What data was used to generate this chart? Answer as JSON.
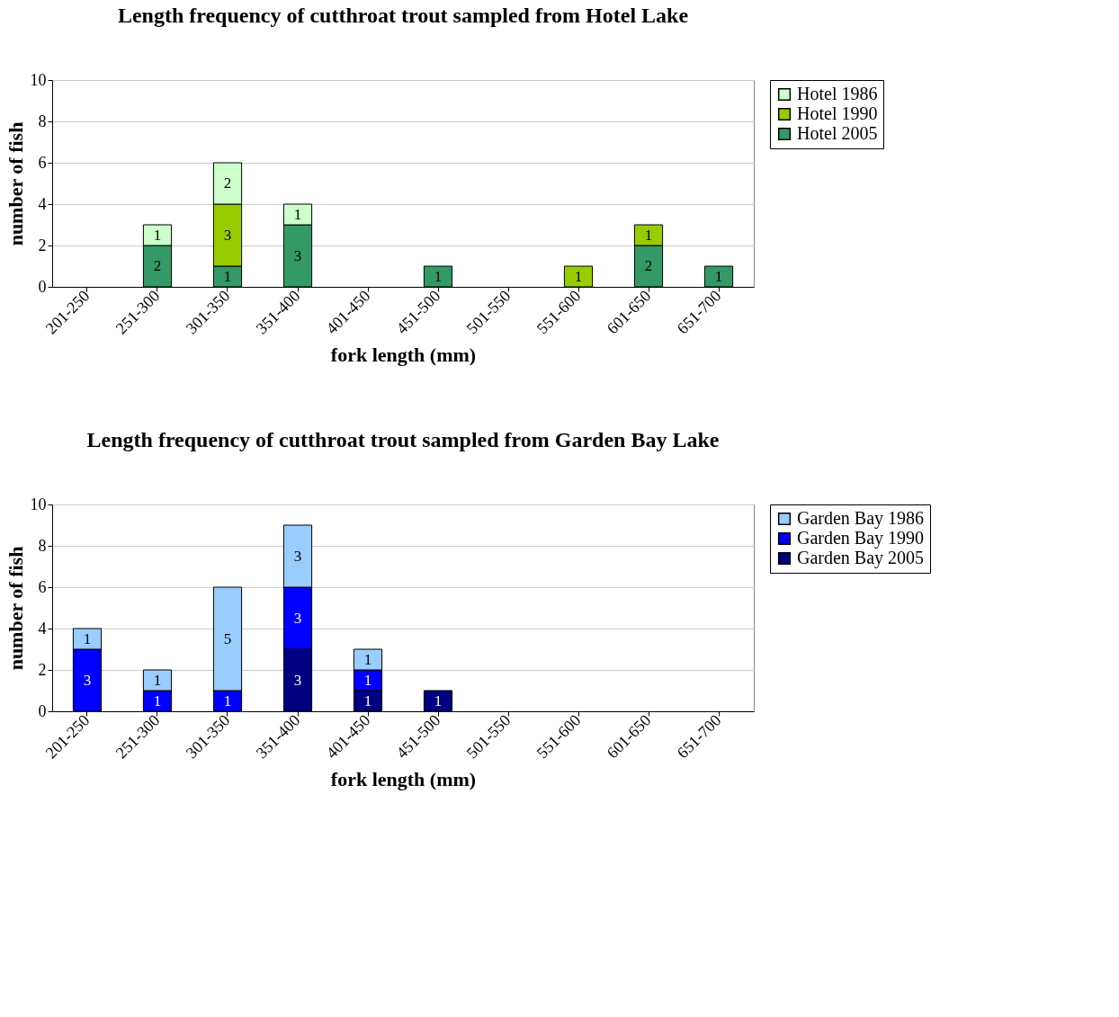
{
  "chart_data": [
    {
      "type": "bar",
      "stacked": true,
      "title": "Length frequency of cutthroat trout sampled from Hotel Lake",
      "xlabel": "fork length (mm)",
      "ylabel": "number of fish",
      "categories": [
        "201-250",
        "251-300",
        "301-350",
        "351-400",
        "401-450",
        "451-500",
        "501-550",
        "551-600",
        "601-650",
        "651-700"
      ],
      "ylim": [
        0,
        10
      ],
      "yticks": [
        0,
        2,
        4,
        6,
        8,
        10
      ],
      "grid": "y",
      "legend": "right",
      "data_labels": true,
      "series": [
        {
          "name": "Hotel 2005",
          "color": "#339966",
          "values": [
            null,
            2,
            1,
            3,
            null,
            1,
            null,
            null,
            2,
            1
          ]
        },
        {
          "name": "Hotel 1990",
          "color": "#99cc00",
          "values": [
            null,
            null,
            3,
            null,
            null,
            null,
            null,
            1,
            1,
            null
          ]
        },
        {
          "name": "Hotel 1986",
          "color": "#ccffcc",
          "values": [
            null,
            1,
            2,
            1,
            null,
            null,
            null,
            null,
            null,
            null
          ]
        }
      ]
    },
    {
      "type": "bar",
      "stacked": true,
      "title": "Length frequency of cutthroat trout sampled from Garden Bay Lake",
      "xlabel": "fork length (mm)",
      "ylabel": "number of fish",
      "categories": [
        "201-250",
        "251-300",
        "301-350",
        "351-400",
        "401-450",
        "451-500",
        "501-550",
        "551-600",
        "601-650",
        "651-700"
      ],
      "ylim": [
        0,
        10
      ],
      "yticks": [
        0,
        2,
        4,
        6,
        8,
        10
      ],
      "grid": "y",
      "legend": "right",
      "data_labels": true,
      "series": [
        {
          "name": "Garden Bay 2005",
          "color": "#000080",
          "values": [
            null,
            null,
            null,
            3,
            1,
            1,
            null,
            null,
            null,
            null
          ]
        },
        {
          "name": "Garden Bay 1990",
          "color": "#0000ff",
          "values": [
            3,
            1,
            1,
            3,
            1,
            null,
            null,
            null,
            null,
            null
          ]
        },
        {
          "name": "Garden Bay 1986",
          "color": "#99ccff",
          "values": [
            1,
            1,
            5,
            3,
            1,
            null,
            null,
            null,
            null,
            null
          ]
        }
      ]
    }
  ]
}
